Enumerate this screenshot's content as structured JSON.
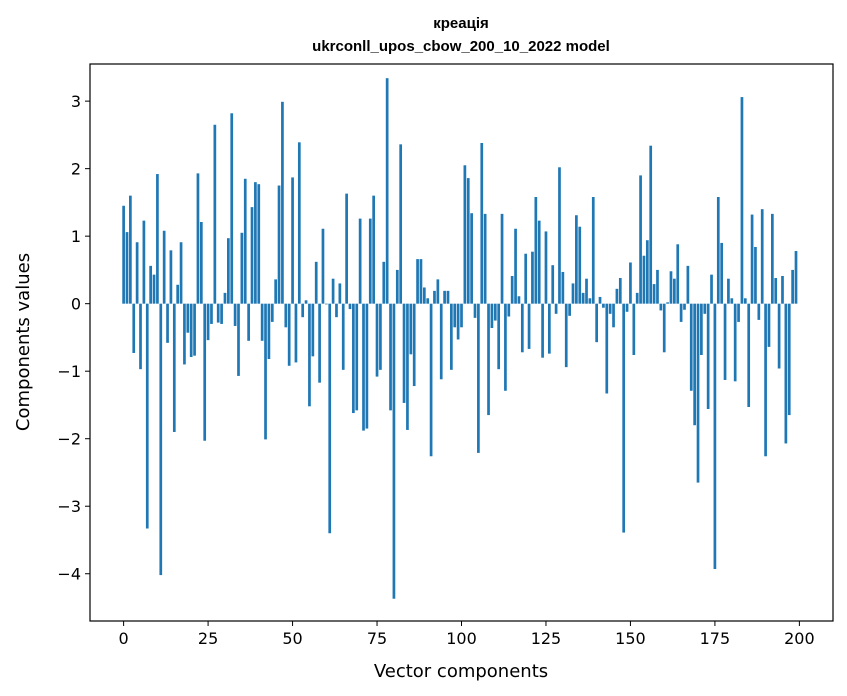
{
  "chart_data": {
    "type": "bar",
    "title": "креація",
    "subtitle": "ukrconll_upos_cbow_200_10_2022 model",
    "xlabel": "Vector components",
    "ylabel": "Components values",
    "xlim": [
      -9.95,
      209.95
    ],
    "ylim": [
      -4.7,
      3.55
    ],
    "xticks": [
      0,
      25,
      50,
      75,
      100,
      125,
      150,
      175,
      200
    ],
    "yticks": [
      -4,
      -3,
      -2,
      -1,
      0,
      1,
      2,
      3
    ],
    "bar_color": "#1f77b4",
    "x": [
      0,
      1,
      2,
      3,
      4,
      5,
      6,
      7,
      8,
      9,
      10,
      11,
      12,
      13,
      14,
      15,
      16,
      17,
      18,
      19,
      20,
      21,
      22,
      23,
      24,
      25,
      26,
      27,
      28,
      29,
      30,
      31,
      32,
      33,
      34,
      35,
      36,
      37,
      38,
      39,
      40,
      41,
      42,
      43,
      44,
      45,
      46,
      47,
      48,
      49,
      50,
      51,
      52,
      53,
      54,
      55,
      56,
      57,
      58,
      59,
      60,
      61,
      62,
      63,
      64,
      65,
      66,
      67,
      68,
      69,
      70,
      71,
      72,
      73,
      74,
      75,
      76,
      77,
      78,
      79,
      80,
      81,
      82,
      83,
      84,
      85,
      86,
      87,
      88,
      89,
      90,
      91,
      92,
      93,
      94,
      95,
      96,
      97,
      98,
      99,
      100,
      101,
      102,
      103,
      104,
      105,
      106,
      107,
      108,
      109,
      110,
      111,
      112,
      113,
      114,
      115,
      116,
      117,
      118,
      119,
      120,
      121,
      122,
      123,
      124,
      125,
      126,
      127,
      128,
      129,
      130,
      131,
      132,
      133,
      134,
      135,
      136,
      137,
      138,
      139,
      140,
      141,
      142,
      143,
      144,
      145,
      146,
      147,
      148,
      149,
      150,
      151,
      152,
      153,
      154,
      155,
      156,
      157,
      158,
      159,
      160,
      161,
      162,
      163,
      164,
      165,
      166,
      167,
      168,
      169,
      170,
      171,
      172,
      173,
      174,
      175,
      176,
      177,
      178,
      179,
      180,
      181,
      182,
      183,
      184,
      185,
      186,
      187,
      188,
      189,
      190,
      191,
      192,
      193,
      194,
      195,
      196,
      197,
      198,
      199
    ],
    "values": [
      1.45,
      1.06,
      1.6,
      -0.73,
      0.91,
      -0.97,
      1.23,
      -3.33,
      0.56,
      0.43,
      1.92,
      -4.02,
      1.08,
      -0.58,
      0.79,
      -1.9,
      0.28,
      0.91,
      -0.9,
      -0.43,
      -0.79,
      -0.77,
      1.93,
      1.21,
      -2.03,
      -0.54,
      -0.3,
      2.65,
      -0.28,
      -0.3,
      0.16,
      0.97,
      2.82,
      -0.33,
      -1.07,
      1.05,
      1.85,
      -0.55,
      1.43,
      1.8,
      1.77,
      -0.55,
      -2.01,
      -0.82,
      -0.27,
      0.36,
      1.75,
      2.99,
      -0.35,
      -0.92,
      1.87,
      -0.87,
      2.39,
      -0.2,
      0.05,
      -1.52,
      -0.78,
      0.62,
      -1.17,
      1.11,
      -0.01,
      -3.4,
      0.37,
      -0.2,
      0.3,
      -0.98,
      1.63,
      -0.08,
      -1.62,
      -1.58,
      1.26,
      -1.88,
      -1.85,
      1.26,
      1.6,
      -1.08,
      -0.98,
      0.62,
      3.34,
      -1.58,
      -4.37,
      0.5,
      2.36,
      -1.47,
      -1.87,
      -0.75,
      -1.22,
      0.66,
      0.66,
      0.24,
      0.08,
      -2.26,
      0.19,
      0.36,
      -1.12,
      0.19,
      0.19,
      -0.98,
      -0.35,
      -0.53,
      -0.35,
      2.05,
      1.86,
      1.34,
      -0.21,
      -2.21,
      2.38,
      1.33,
      -1.65,
      -0.36,
      -0.25,
      -0.97,
      1.33,
      -1.29,
      -0.19,
      0.41,
      1.11,
      0.11,
      -0.72,
      0.74,
      -0.67,
      0.77,
      1.58,
      1.23,
      -0.8,
      1.07,
      -0.74,
      0.57,
      -0.15,
      2.02,
      0.47,
      -0.94,
      -0.18,
      0.3,
      1.31,
      1.14,
      0.16,
      0.37,
      0.08,
      1.58,
      -0.57,
      0.1,
      -0.06,
      -1.33,
      -0.15,
      -0.35,
      0.22,
      0.38,
      -3.39,
      -0.12,
      0.61,
      -0.76,
      0.16,
      1.9,
      0.71,
      0.94,
      2.34,
      0.29,
      0.5,
      -0.1,
      -0.72,
      0.02,
      0.48,
      0.37,
      0.88,
      -0.27,
      -0.09,
      0.56,
      -1.29,
      -1.8,
      -2.65,
      -0.76,
      -0.15,
      -1.56,
      0.43,
      -3.93,
      1.58,
      0.9,
      -1.13,
      0.37,
      0.08,
      -1.15,
      -0.27,
      3.06,
      0.08,
      -1.53,
      1.32,
      0.84,
      -0.24,
      1.4,
      -2.26,
      -0.64,
      1.33,
      0.38,
      -0.96,
      0.41,
      -2.07,
      -1.65,
      0.5,
      0.78
    ]
  }
}
